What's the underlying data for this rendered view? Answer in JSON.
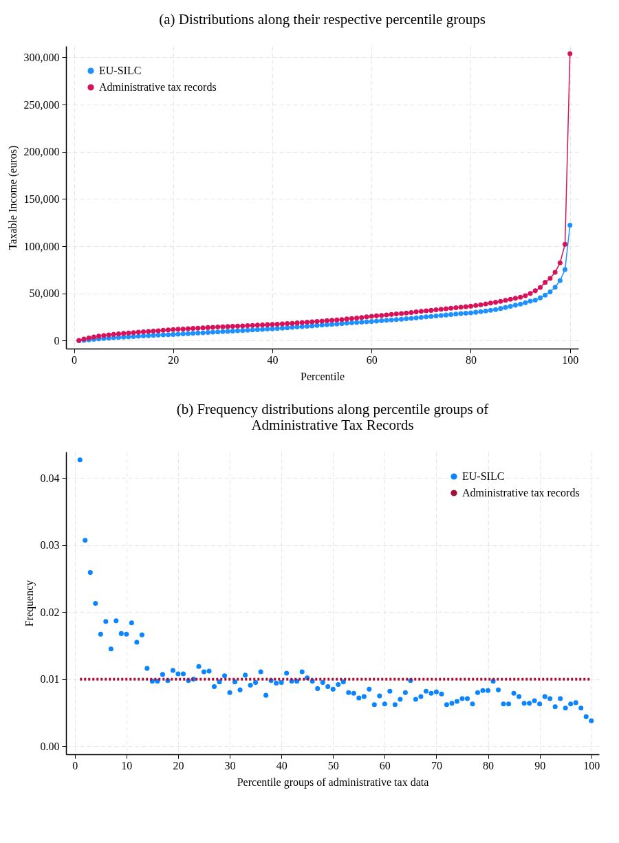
{
  "chart_data": [
    {
      "type": "line",
      "title": "(a) Distributions along their respective percentile groups",
      "xlabel": "Percentile",
      "ylabel": "Taxable Income (euros)",
      "x": [
        1,
        2,
        3,
        4,
        5,
        6,
        7,
        8,
        9,
        10,
        11,
        12,
        13,
        14,
        15,
        16,
        17,
        18,
        19,
        20,
        21,
        22,
        23,
        24,
        25,
        26,
        27,
        28,
        29,
        30,
        31,
        32,
        33,
        34,
        35,
        36,
        37,
        38,
        39,
        40,
        41,
        42,
        43,
        44,
        45,
        46,
        47,
        48,
        49,
        50,
        51,
        52,
        53,
        54,
        55,
        56,
        57,
        58,
        59,
        60,
        61,
        62,
        63,
        64,
        65,
        66,
        67,
        68,
        69,
        70,
        71,
        72,
        73,
        74,
        75,
        76,
        77,
        78,
        79,
        80,
        81,
        82,
        83,
        84,
        85,
        86,
        87,
        88,
        89,
        90,
        91,
        92,
        93,
        94,
        95,
        96,
        97,
        98,
        99,
        100
      ],
      "series": [
        {
          "name": "EU-SILC",
          "color": "#1e90ff",
          "values": [
            0,
            300,
            800,
            1300,
            1800,
            2200,
            2600,
            3000,
            3400,
            3700,
            4000,
            4300,
            4600,
            4900,
            5200,
            5500,
            5800,
            6000,
            6300,
            6500,
            6800,
            7100,
            7400,
            7700,
            8000,
            8300,
            8600,
            8900,
            9200,
            9500,
            9800,
            10100,
            10400,
            10700,
            11000,
            11300,
            11600,
            11900,
            12200,
            12400,
            12800,
            13200,
            13600,
            14000,
            14400,
            14800,
            15200,
            15600,
            16000,
            16400,
            16800,
            17200,
            17600,
            18000,
            18400,
            18800,
            19200,
            19600,
            19900,
            20200,
            20700,
            21100,
            21500,
            21900,
            22300,
            22700,
            23100,
            23600,
            24100,
            24600,
            25100,
            25600,
            26100,
            26600,
            27100,
            27600,
            28100,
            28600,
            29000,
            29400,
            30000,
            30700,
            31400,
            32100,
            32900,
            34000,
            35100,
            36300,
            37500,
            38700,
            40100,
            41800,
            42900,
            45300,
            48100,
            51600,
            56500,
            63600,
            75300,
            122300
          ]
        },
        {
          "name": "Administrative tax records",
          "color": "#d6135a",
          "values": [
            0,
            1600,
            2800,
            3800,
            4700,
            5400,
            6000,
            6600,
            7100,
            7600,
            8100,
            8500,
            8900,
            9300,
            9700,
            10100,
            10500,
            10900,
            11300,
            11700,
            12000,
            12300,
            12600,
            12900,
            13200,
            13500,
            13800,
            14100,
            14400,
            14600,
            14900,
            15100,
            15400,
            15600,
            15900,
            16100,
            16400,
            16600,
            16900,
            17100,
            17400,
            17700,
            18000,
            18300,
            18700,
            19100,
            19500,
            19900,
            20300,
            20700,
            21100,
            21500,
            21900,
            22300,
            22900,
            23400,
            23900,
            24500,
            25100,
            25700,
            26200,
            26700,
            27200,
            27700,
            28200,
            28700,
            29200,
            29800,
            30400,
            31000,
            31500,
            32000,
            32600,
            33200,
            33800,
            34300,
            34800,
            35400,
            35900,
            36400,
            37200,
            38000,
            38800,
            39700,
            40600,
            41600,
            42700,
            43800,
            44900,
            46000,
            47600,
            50000,
            52800,
            56300,
            61700,
            66000,
            72300,
            82400,
            102000,
            304000
          ]
        }
      ],
      "xlim": [
        -1.6,
        101.7
      ],
      "xticks": [
        0,
        20,
        40,
        60,
        80,
        100
      ],
      "ylim": [
        -8500,
        312000
      ],
      "yticks": [
        0,
        {
          "value": 50000,
          "label": "50,000"
        },
        {
          "value": 100000,
          "label": "100,000"
        },
        {
          "value": 150000,
          "label": "150,000"
        },
        {
          "value": 200000,
          "label": "200,000"
        },
        {
          "value": 250000,
          "label": "250,000"
        },
        {
          "value": 300000,
          "label": "300,000"
        }
      ],
      "grid": true,
      "legend": "top left",
      "marker": "circle",
      "line_style": "solid"
    },
    {
      "type": "scatter",
      "title": "(b) Frequency distributions along percentile groups of\nAdministrative Tax Records",
      "xlabel": "Percentile groups of administrative tax data",
      "ylabel": "Frequency",
      "x": [
        1,
        2,
        3,
        4,
        5,
        6,
        7,
        8,
        9,
        10,
        11,
        12,
        13,
        14,
        15,
        16,
        17,
        18,
        19,
        20,
        21,
        22,
        23,
        24,
        25,
        26,
        27,
        28,
        29,
        30,
        31,
        32,
        33,
        34,
        35,
        36,
        37,
        38,
        39,
        40,
        41,
        42,
        43,
        44,
        45,
        46,
        47,
        48,
        49,
        50,
        51,
        52,
        53,
        54,
        55,
        56,
        57,
        58,
        59,
        60,
        61,
        62,
        63,
        64,
        65,
        66,
        67,
        68,
        69,
        70,
        71,
        72,
        73,
        74,
        75,
        76,
        77,
        78,
        79,
        80,
        81,
        82,
        83,
        84,
        85,
        86,
        87,
        88,
        89,
        90,
        91,
        92,
        93,
        94,
        95,
        96,
        97,
        98,
        99,
        100
      ],
      "series": [
        {
          "name": "EU-SILC",
          "color": "#0a84ff",
          "marker": "circle",
          "values": [
            0.0427,
            0.0307,
            0.0259,
            0.0213,
            0.0167,
            0.0186,
            0.0145,
            0.0187,
            0.0168,
            0.0167,
            0.0184,
            0.0155,
            0.0166,
            0.0116,
            0.0097,
            0.0097,
            0.0107,
            0.0098,
            0.0113,
            0.0108,
            0.0108,
            0.0098,
            0.01,
            0.0119,
            0.0111,
            0.0112,
            0.0089,
            0.0096,
            0.0105,
            0.008,
            0.0096,
            0.0084,
            0.0106,
            0.0091,
            0.0095,
            0.0111,
            0.0076,
            0.0098,
            0.0094,
            0.0095,
            0.0109,
            0.0097,
            0.0097,
            0.0111,
            0.0102,
            0.0097,
            0.0086,
            0.0095,
            0.0089,
            0.0085,
            0.0092,
            0.0096,
            0.008,
            0.0079,
            0.0072,
            0.0074,
            0.0085,
            0.0062,
            0.0075,
            0.0063,
            0.0082,
            0.0062,
            0.007,
            0.008,
            0.0098,
            0.007,
            0.0074,
            0.0082,
            0.0079,
            0.0081,
            0.0078,
            0.0062,
            0.0064,
            0.0067,
            0.0071,
            0.0071,
            0.0063,
            0.008,
            0.0083,
            0.0083,
            0.0097,
            0.0084,
            0.0063,
            0.0063,
            0.0079,
            0.0074,
            0.0064,
            0.0064,
            0.0068,
            0.0063,
            0.0074,
            0.0071,
            0.0059,
            0.0071,
            0.0057,
            0.0063,
            0.0065,
            0.0057,
            0.0044,
            0.0038
          ]
        },
        {
          "name": "Administrative tax records",
          "type": "line",
          "color": "#a50f36",
          "line_style": "dotted",
          "marker": "none",
          "x": [
            1,
            100
          ],
          "values": [
            0.01,
            0.01
          ]
        }
      ],
      "xlim": [
        -1.7,
        101.5
      ],
      "xticks": [
        0,
        10,
        20,
        30,
        40,
        50,
        60,
        70,
        80,
        90,
        100
      ],
      "ylim": [
        -0.0012,
        0.0439
      ],
      "yticks": [
        {
          "value": 0,
          "label": "0.00"
        },
        {
          "value": 0.01,
          "label": "0.01"
        },
        {
          "value": 0.02,
          "label": "0.02"
        },
        {
          "value": 0.03,
          "label": "0.03"
        },
        {
          "value": 0.04,
          "label": "0.04"
        }
      ],
      "grid": true,
      "legend": "top right"
    }
  ]
}
